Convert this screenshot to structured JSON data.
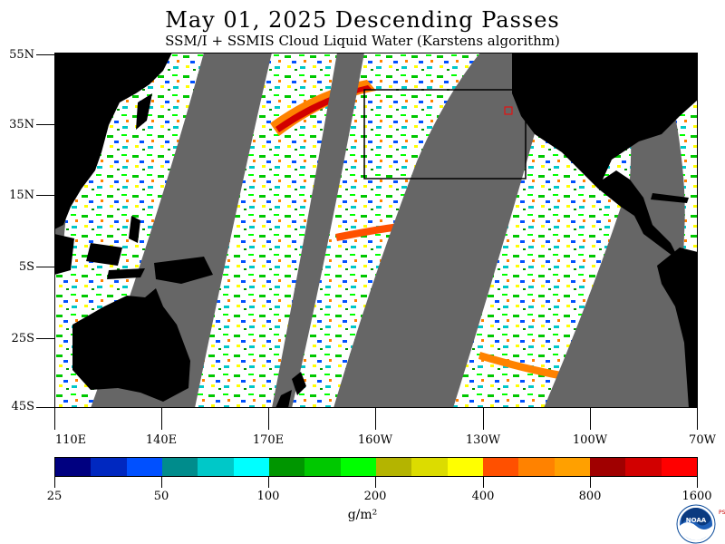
{
  "header": {
    "title": "May 01, 2025  Descending Passes",
    "subtitle": "SSM/I + SSMIS Cloud Liquid Water (Karstens algorithm)"
  },
  "map": {
    "lat_labels": [
      "55N",
      "35N",
      "15N",
      "5S",
      "25S",
      "45S"
    ],
    "lon_labels": [
      "110E",
      "140E",
      "170E",
      "160W",
      "130W",
      "100W",
      "70W"
    ],
    "colors": {
      "no_data": "#666666",
      "land": "#000000",
      "clear": "#ffffff",
      "frame": "#000000",
      "region_box": "#000000",
      "marker": "#ff0000"
    }
  },
  "colorbar": {
    "colors": [
      "#000080",
      "#0028c0",
      "#0050ff",
      "#008c8c",
      "#00c8c8",
      "#00ffff",
      "#009600",
      "#00c800",
      "#00ff00",
      "#b4b400",
      "#dcdc00",
      "#ffff00",
      "#ff5000",
      "#ff8200",
      "#ffa000",
      "#a00000",
      "#d20000",
      "#ff0000"
    ],
    "tick_labels": [
      "25",
      "50",
      "100",
      "200",
      "400",
      "800",
      "1600"
    ],
    "units": "g/m²"
  },
  "logo": {
    "name": "noaa-logo",
    "text": "NOAA",
    "side_text": "PSL"
  }
}
